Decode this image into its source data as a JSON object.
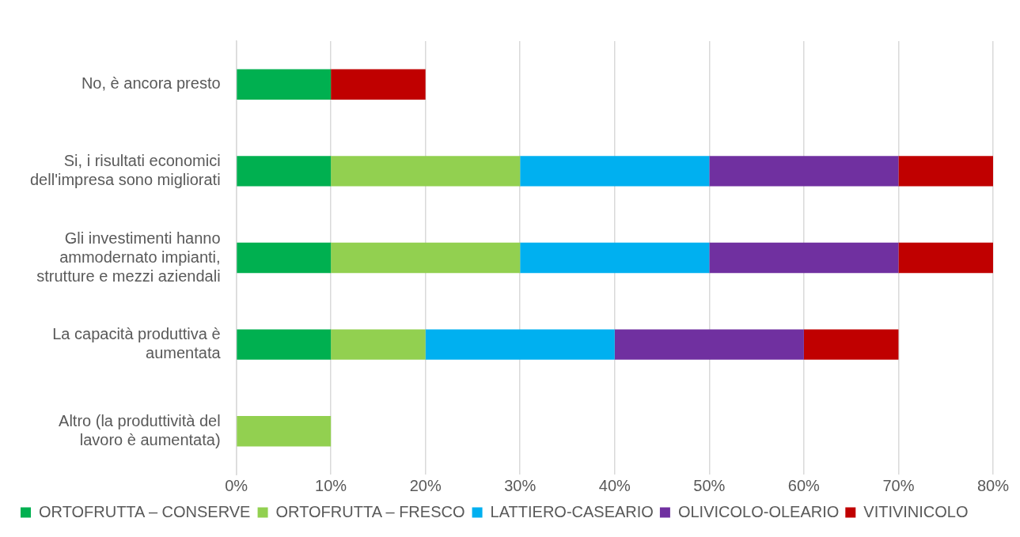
{
  "chart_data": {
    "type": "bar",
    "orientation": "horizontal",
    "stacked": true,
    "categories": [
      "No, è ancora presto",
      "Si, i risultati economici dell'impresa sono migliorati",
      "Gli investimenti hanno ammodernato impianti, strutture e mezzi aziendali",
      "La capacità produttiva è aumentata",
      "Altro (la produttività del lavoro è aumentata)"
    ],
    "series": [
      {
        "name": "ORTOFRUTTA – CONSERVE",
        "color": "#00b050",
        "values": [
          10,
          10,
          10,
          10,
          0
        ]
      },
      {
        "name": "ORTOFRUTTA – FRESCO",
        "color": "#92d050",
        "values": [
          0,
          20,
          20,
          10,
          10
        ]
      },
      {
        "name": "LATTIERO-CASEARIO",
        "color": "#00b0f0",
        "values": [
          0,
          20,
          20,
          20,
          0
        ]
      },
      {
        "name": "OLIVICOLO-OLEARIO",
        "color": "#7030a0",
        "values": [
          0,
          20,
          20,
          20,
          0
        ]
      },
      {
        "name": "VITIVINICOLO",
        "color": "#c00000",
        "values": [
          10,
          10,
          10,
          10,
          0
        ]
      }
    ],
    "xlim": [
      0,
      80
    ],
    "xticks": [
      {
        "value": 0,
        "label": "0%"
      },
      {
        "value": 10,
        "label": "10%"
      },
      {
        "value": 20,
        "label": "20%"
      },
      {
        "value": 30,
        "label": "30%"
      },
      {
        "value": 40,
        "label": "40%"
      },
      {
        "value": 50,
        "label": "50%"
      },
      {
        "value": 60,
        "label": "60%"
      },
      {
        "value": 70,
        "label": "70%"
      },
      {
        "value": 80,
        "label": "80%"
      }
    ],
    "grid": "x",
    "legend": "bottom"
  }
}
